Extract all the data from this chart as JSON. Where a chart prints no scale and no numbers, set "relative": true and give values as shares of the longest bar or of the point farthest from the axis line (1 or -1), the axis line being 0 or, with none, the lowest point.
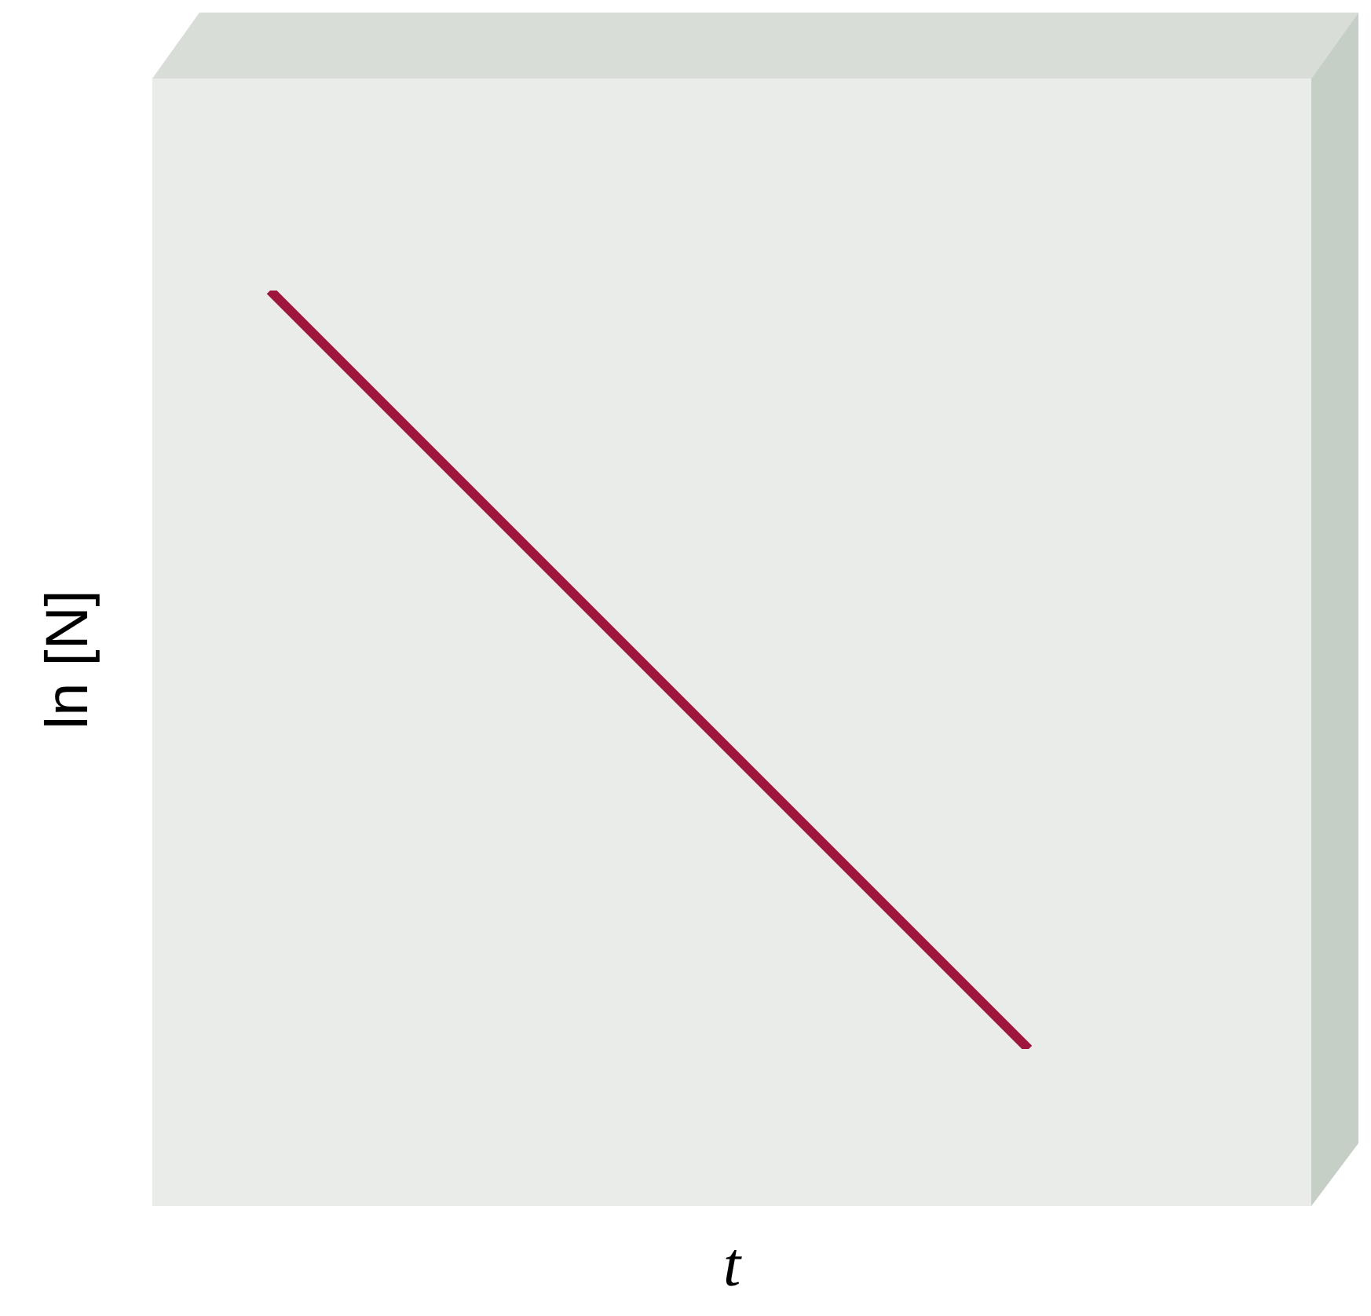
{
  "chart_data": {
    "type": "line",
    "relative": true,
    "xlabel": "t",
    "ylabel": "ln [N]",
    "categories": [
      null,
      null
    ],
    "series": [
      {
        "color": "#a0153c",
        "values": [
          1,
          0
        ]
      }
    ],
    "grid": false,
    "marker": "none",
    "line_style": "solid"
  }
}
